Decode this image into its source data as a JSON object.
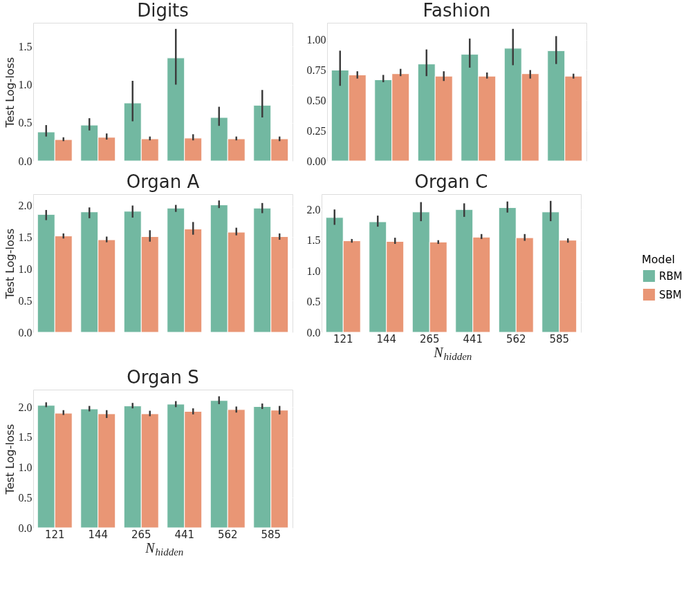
{
  "chart_data": [
    {
      "type": "bar",
      "title": "Digits",
      "ylabel": "Test Log-loss",
      "categories": [
        "121",
        "144",
        "265",
        "441",
        "562",
        "585"
      ],
      "ylim": [
        0,
        1.81
      ],
      "yticks": [
        {
          "value": 0,
          "label": "0.0"
        },
        {
          "value": 0.5,
          "label": "0.5"
        },
        {
          "value": 1,
          "label": "1.0"
        },
        {
          "value": 1.5,
          "label": "1.5"
        }
      ],
      "grid": "y",
      "tick_labels": "y",
      "legend": "right",
      "series": [
        {
          "name": "RBM",
          "color": "#72b8a1",
          "values": [
            0.38,
            0.47,
            0.76,
            1.35,
            0.57,
            0.73
          ],
          "errors": [
            [
              0.32,
              0.47
            ],
            [
              0.4,
              0.56
            ],
            [
              0.52,
              1.05
            ],
            [
              1.0,
              1.73
            ],
            [
              0.46,
              0.71
            ],
            [
              0.57,
              0.93
            ]
          ]
        },
        {
          "name": "SBM",
          "color": "#e99675",
          "values": [
            0.28,
            0.31,
            0.29,
            0.3,
            0.29,
            0.29
          ],
          "errors": [
            [
              0.26,
              0.31
            ],
            [
              0.28,
              0.36
            ],
            [
              0.27,
              0.32
            ],
            [
              0.27,
              0.35
            ],
            [
              0.27,
              0.32
            ],
            [
              0.26,
              0.32
            ]
          ]
        }
      ]
    },
    {
      "type": "bar",
      "title": "Fashion",
      "categories": [
        "121",
        "144",
        "265",
        "441",
        "562",
        "585"
      ],
      "ylim": [
        0,
        1.14
      ],
      "yticks": [
        {
          "value": 0,
          "label": "0.00"
        },
        {
          "value": 0.25,
          "label": "0.25"
        },
        {
          "value": 0.5,
          "label": "0.50"
        },
        {
          "value": 0.75,
          "label": "0.75"
        },
        {
          "value": 1,
          "label": "1.00"
        }
      ],
      "grid": "y",
      "tick_labels": "y",
      "legend": "right",
      "series": [
        {
          "name": "RBM",
          "color": "#72b8a1",
          "values": [
            0.75,
            0.67,
            0.8,
            0.88,
            0.93,
            0.91
          ],
          "errors": [
            [
              0.62,
              0.91
            ],
            [
              0.65,
              0.71
            ],
            [
              0.7,
              0.92
            ],
            [
              0.77,
              1.01
            ],
            [
              0.79,
              1.09
            ],
            [
              0.8,
              1.03
            ]
          ]
        },
        {
          "name": "SBM",
          "color": "#e99675",
          "values": [
            0.71,
            0.72,
            0.7,
            0.7,
            0.72,
            0.7
          ],
          "errors": [
            [
              0.68,
              0.74
            ],
            [
              0.7,
              0.76
            ],
            [
              0.66,
              0.74
            ],
            [
              0.68,
              0.73
            ],
            [
              0.68,
              0.75
            ],
            [
              0.68,
              0.72
            ]
          ]
        }
      ]
    },
    {
      "type": "bar",
      "title": "Organ A",
      "ylabel": "Test Log-loss",
      "categories": [
        "121",
        "144",
        "265",
        "441",
        "562",
        "585"
      ],
      "ylim": [
        0,
        2.18
      ],
      "yticks": [
        {
          "value": 0,
          "label": "0.0"
        },
        {
          "value": 0.5,
          "label": "0.5"
        },
        {
          "value": 1,
          "label": "1.0"
        },
        {
          "value": 1.5,
          "label": "1.5"
        },
        {
          "value": 2,
          "label": "2.0"
        }
      ],
      "grid": "y",
      "tick_labels": "y",
      "legend": "right",
      "series": [
        {
          "name": "RBM",
          "color": "#72b8a1",
          "values": [
            1.86,
            1.9,
            1.91,
            1.96,
            2.01,
            1.96
          ],
          "errors": [
            [
              1.77,
              1.93
            ],
            [
              1.8,
              1.97
            ],
            [
              1.81,
              2.0
            ],
            [
              1.9,
              2.01
            ],
            [
              1.96,
              2.08
            ],
            [
              1.88,
              2.04
            ]
          ]
        },
        {
          "name": "SBM",
          "color": "#e99675",
          "values": [
            1.52,
            1.46,
            1.51,
            1.63,
            1.58,
            1.51
          ],
          "errors": [
            [
              1.48,
              1.56
            ],
            [
              1.42,
              1.51
            ],
            [
              1.43,
              1.61
            ],
            [
              1.54,
              1.74
            ],
            [
              1.53,
              1.65
            ],
            [
              1.46,
              1.56
            ]
          ]
        }
      ]
    },
    {
      "type": "bar",
      "title": "Organ C",
      "xlabel": "N$_{hidden}$",
      "legend_title": "Model",
      "categories": [
        "121",
        "144",
        "265",
        "441",
        "562",
        "585"
      ],
      "ylim": [
        0,
        2.25
      ],
      "yticks": [
        {
          "value": 0,
          "label": "0.0"
        },
        {
          "value": 0.5,
          "label": "0.5"
        },
        {
          "value": 1,
          "label": "1.0"
        },
        {
          "value": 1.5,
          "label": "1.5"
        },
        {
          "value": 2,
          "label": "2.0"
        }
      ],
      "grid": "y",
      "legend": "right",
      "series": [
        {
          "name": "RBM",
          "color": "#72b8a1",
          "values": [
            1.87,
            1.8,
            1.96,
            2.0,
            2.03,
            1.96
          ],
          "errors": [
            [
              1.75,
              2.0
            ],
            [
              1.72,
              1.9
            ],
            [
              1.81,
              2.12
            ],
            [
              1.88,
              2.1
            ],
            [
              1.95,
              2.13
            ],
            [
              1.81,
              2.14
            ]
          ]
        },
        {
          "name": "SBM",
          "color": "#e99675",
          "values": [
            1.49,
            1.48,
            1.47,
            1.55,
            1.54,
            1.5
          ],
          "errors": [
            [
              1.46,
              1.52
            ],
            [
              1.44,
              1.54
            ],
            [
              1.44,
              1.5
            ],
            [
              1.52,
              1.6
            ],
            [
              1.49,
              1.6
            ],
            [
              1.46,
              1.53
            ]
          ]
        }
      ]
    },
    {
      "type": "bar",
      "title": "Organ S",
      "ylabel": "Test Log-loss",
      "xlabel": "N$_{hidden}$",
      "categories": [
        "121",
        "144",
        "265",
        "441",
        "562",
        "585"
      ],
      "ylim": [
        0,
        2.29
      ],
      "yticks": [
        {
          "value": 0,
          "label": "0.0"
        },
        {
          "value": 0.5,
          "label": "0.5"
        },
        {
          "value": 1,
          "label": "1.0"
        },
        {
          "value": 1.5,
          "label": "1.5"
        },
        {
          "value": 2,
          "label": "2.0"
        }
      ],
      "grid": "y",
      "legend": "right",
      "series": [
        {
          "name": "RBM",
          "color": "#72b8a1",
          "values": [
            2.03,
            1.97,
            2.02,
            2.05,
            2.11,
            2.01
          ],
          "errors": [
            [
              2.0,
              2.08
            ],
            [
              1.93,
              2.02
            ],
            [
              1.98,
              2.07
            ],
            [
              2.0,
              2.1
            ],
            [
              2.05,
              2.18
            ],
            [
              1.97,
              2.06
            ]
          ]
        },
        {
          "name": "SBM",
          "color": "#e99675",
          "values": [
            1.9,
            1.89,
            1.89,
            1.93,
            1.96,
            1.95
          ],
          "errors": [
            [
              1.87,
              1.95
            ],
            [
              1.82,
              1.95
            ],
            [
              1.85,
              1.94
            ],
            [
              1.88,
              1.98
            ],
            [
              1.91,
              2.01
            ],
            [
              1.88,
              2.02
            ]
          ]
        }
      ]
    }
  ]
}
